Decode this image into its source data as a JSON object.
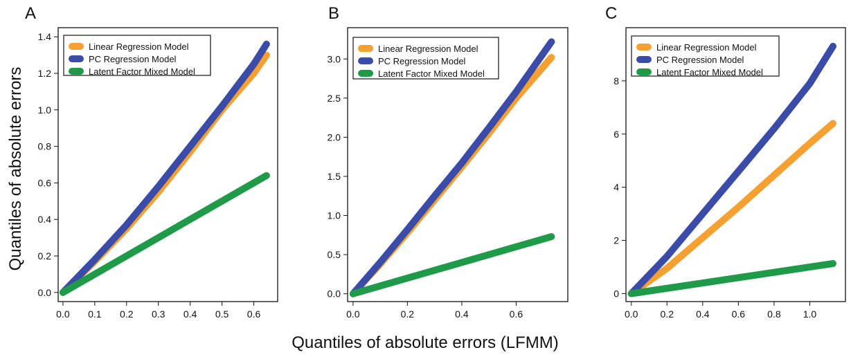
{
  "figure": {
    "ylabel": "Quantiles of absolute errors",
    "xlabel": "Quantiles of absolute errors (LFMM)"
  },
  "colors": {
    "linear": "#F5A030",
    "pc": "#3B4BA8",
    "lfmm": "#1F9A49"
  },
  "chart_data": [
    {
      "panel": "A",
      "type": "line",
      "xlim": [
        -0.015,
        0.675
      ],
      "ylim": [
        -0.05,
        1.45
      ],
      "xticks": [
        "0.0",
        "0.1",
        "0.2",
        "0.3",
        "0.4",
        "0.5",
        "0.6"
      ],
      "yticks": [
        "0.0",
        "0.2",
        "0.4",
        "0.6",
        "0.8",
        "1.0",
        "1.2",
        "1.4"
      ],
      "legend": "top-left",
      "series": [
        {
          "name": "Linear Regression Model",
          "color": "#F5A030",
          "x": [
            0,
            0.1,
            0.2,
            0.3,
            0.4,
            0.5,
            0.6,
            0.64
          ],
          "y": [
            0,
            0.17,
            0.35,
            0.55,
            0.77,
            1.0,
            1.2,
            1.3
          ]
        },
        {
          "name": "PC Regression Model",
          "color": "#3B4BA8",
          "x": [
            0,
            0.1,
            0.2,
            0.3,
            0.4,
            0.5,
            0.6,
            0.64
          ],
          "y": [
            0,
            0.18,
            0.37,
            0.58,
            0.8,
            1.02,
            1.25,
            1.36
          ]
        },
        {
          "name": "Latent Factor Mixed Model",
          "color": "#1F9A49",
          "x": [
            0,
            0.64
          ],
          "y": [
            0,
            0.64
          ]
        }
      ]
    },
    {
      "panel": "B",
      "type": "line",
      "xlim": [
        -0.02,
        0.79
      ],
      "ylim": [
        -0.1,
        3.4
      ],
      "xticks": [
        "0.0",
        "0.2",
        "0.4",
        "0.6"
      ],
      "yticks": [
        "0.0",
        "0.5",
        "1.0",
        "1.5",
        "2.0",
        "2.5",
        "3.0"
      ],
      "legend": "top-left",
      "series": [
        {
          "name": "Linear Regression Model",
          "color": "#F5A030",
          "x": [
            0,
            0.1,
            0.2,
            0.3,
            0.4,
            0.5,
            0.6,
            0.73
          ],
          "y": [
            0,
            0.38,
            0.78,
            1.2,
            1.62,
            2.05,
            2.5,
            3.02
          ]
        },
        {
          "name": "PC Regression Model",
          "color": "#3B4BA8",
          "x": [
            0,
            0.1,
            0.2,
            0.3,
            0.4,
            0.5,
            0.6,
            0.73
          ],
          "y": [
            0,
            0.4,
            0.82,
            1.25,
            1.67,
            2.12,
            2.58,
            3.22
          ]
        },
        {
          "name": "Latent Factor Mixed Model",
          "color": "#1F9A49",
          "x": [
            0,
            0.73
          ],
          "y": [
            0,
            0.73
          ]
        }
      ]
    },
    {
      "panel": "C",
      "type": "line",
      "xlim": [
        -0.03,
        1.2
      ],
      "ylim": [
        -0.3,
        10.0
      ],
      "xticks": [
        "0.0",
        "0.2",
        "0.4",
        "0.6",
        "0.8",
        "1.0"
      ],
      "yticks": [
        "0",
        "2",
        "4",
        "6",
        "8"
      ],
      "legend": "top-left",
      "series": [
        {
          "name": "Linear Regression Model",
          "color": "#F5A030",
          "x": [
            0,
            0.2,
            0.4,
            0.6,
            0.8,
            1.0,
            1.13
          ],
          "y": [
            0,
            0.95,
            2.1,
            3.25,
            4.45,
            5.65,
            6.4
          ]
        },
        {
          "name": "PC Regression Model",
          "color": "#3B4BA8",
          "x": [
            0,
            0.2,
            0.4,
            0.6,
            0.8,
            1.0,
            1.13
          ],
          "y": [
            0,
            1.4,
            3.0,
            4.6,
            6.2,
            7.9,
            9.3
          ]
        },
        {
          "name": "Latent Factor Mixed Model",
          "color": "#1F9A49",
          "x": [
            0,
            1.13
          ],
          "y": [
            0,
            1.13
          ]
        }
      ]
    }
  ]
}
